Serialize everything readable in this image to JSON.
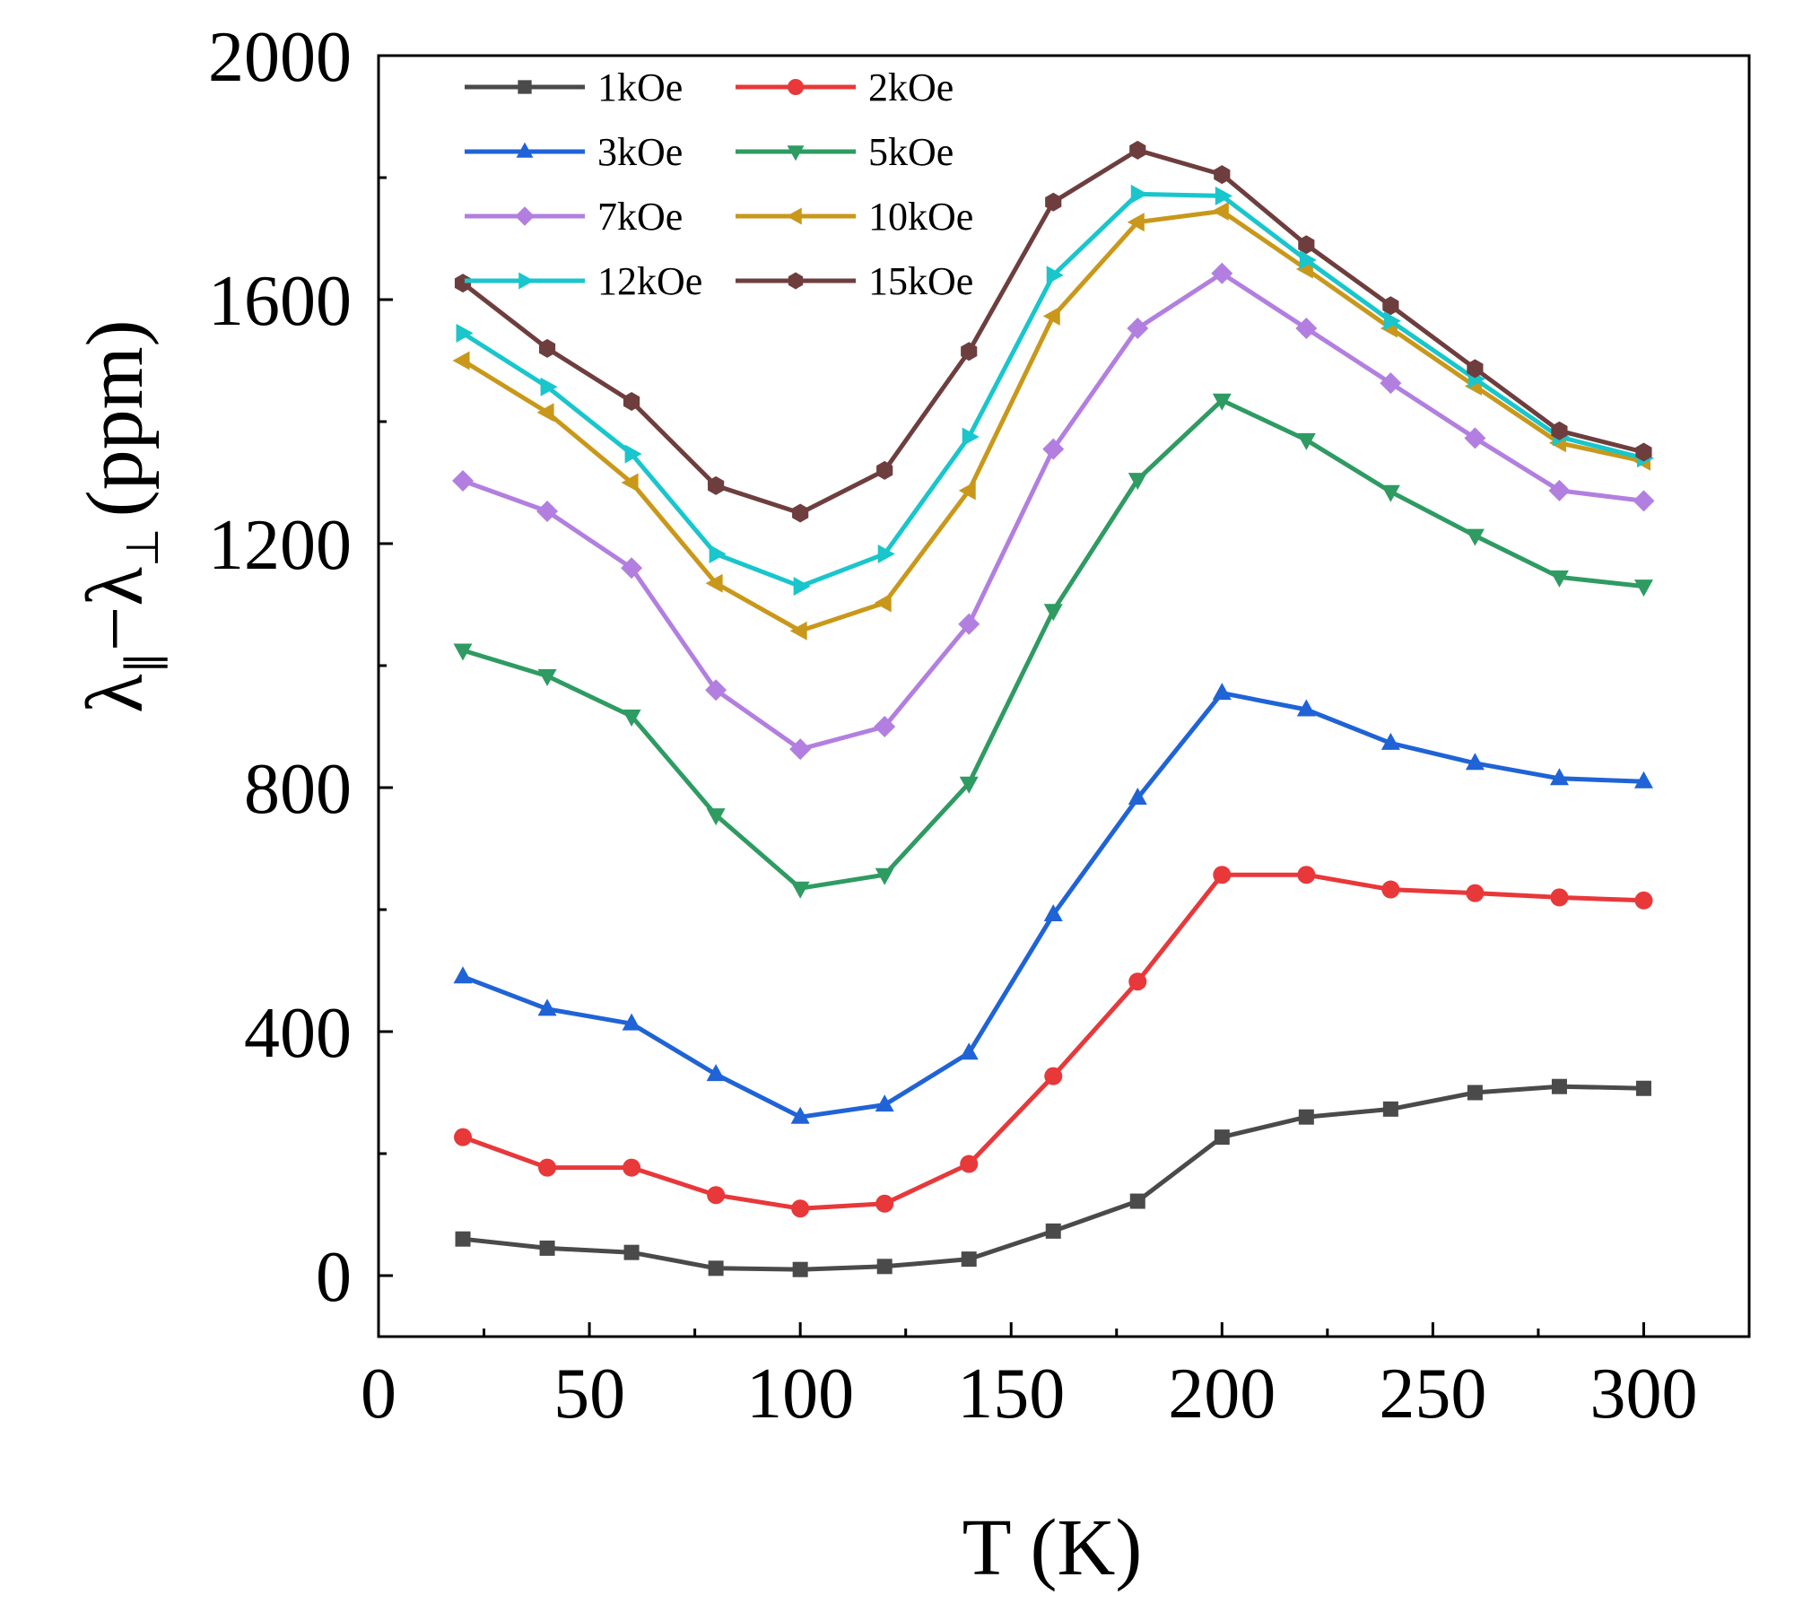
{
  "chart_data": {
    "type": "line",
    "title": "",
    "xlabel": "T (K)",
    "ylabel": {
      "lambda_main": "λ",
      "par_sub": "∥",
      "minus": "−",
      "perp_sub": "⊥",
      "unit": "(ppm)"
    },
    "xlim": [
      0,
      325
    ],
    "ylim": [
      -100,
      2000
    ],
    "xticks": [
      0,
      50,
      100,
      150,
      200,
      250,
      300
    ],
    "yticks": [
      0,
      400,
      800,
      1200,
      1600,
      2000
    ],
    "grid": false,
    "legend_position": "top-left",
    "x": [
      20,
      40,
      60,
      80,
      100,
      120,
      140,
      160,
      180,
      200,
      220,
      240,
      260,
      280,
      300
    ],
    "series": [
      {
        "name": "1kOe",
        "color": "#4a4a4a",
        "marker": "square",
        "values": [
          60,
          45,
          38,
          12,
          10,
          15,
          27,
          73,
          122,
          227,
          260,
          273,
          300,
          310,
          307
        ]
      },
      {
        "name": "2kOe",
        "color": "#e8383a",
        "marker": "circle",
        "values": [
          227,
          177,
          177,
          132,
          110,
          118,
          183,
          327,
          482,
          657,
          657,
          633,
          627,
          620,
          615
        ]
      },
      {
        "name": "3kOe",
        "color": "#1f63d6",
        "marker": "triangle-up",
        "values": [
          490,
          437,
          413,
          330,
          260,
          280,
          365,
          592,
          783,
          955,
          928,
          873,
          840,
          815,
          810
        ]
      },
      {
        "name": "5kOe",
        "color": "#2e9b62",
        "marker": "triangle-down",
        "values": [
          1025,
          983,
          917,
          755,
          635,
          657,
          807,
          1090,
          1305,
          1435,
          1370,
          1285,
          1213,
          1145,
          1130
        ]
      },
      {
        "name": "7kOe",
        "color": "#b27fe0",
        "marker": "diamond",
        "values": [
          1303,
          1253,
          1160,
          960,
          863,
          900,
          1068,
          1355,
          1553,
          1643,
          1553,
          1463,
          1373,
          1287,
          1270
        ]
      },
      {
        "name": "10kOe",
        "color": "#c9981a",
        "marker": "triangle-left",
        "values": [
          1500,
          1415,
          1300,
          1135,
          1057,
          1103,
          1287,
          1573,
          1727,
          1745,
          1650,
          1553,
          1458,
          1365,
          1335
        ]
      },
      {
        "name": "12kOe",
        "color": "#18c6cc",
        "marker": "triangle-right",
        "values": [
          1545,
          1457,
          1347,
          1183,
          1130,
          1183,
          1375,
          1640,
          1773,
          1770,
          1665,
          1565,
          1470,
          1375,
          1340
        ]
      },
      {
        "name": "15kOe",
        "color": "#6e3e3e",
        "marker": "hexagon",
        "values": [
          1627,
          1520,
          1433,
          1295,
          1250,
          1320,
          1515,
          1760,
          1845,
          1805,
          1690,
          1590,
          1487,
          1385,
          1350
        ]
      }
    ]
  }
}
